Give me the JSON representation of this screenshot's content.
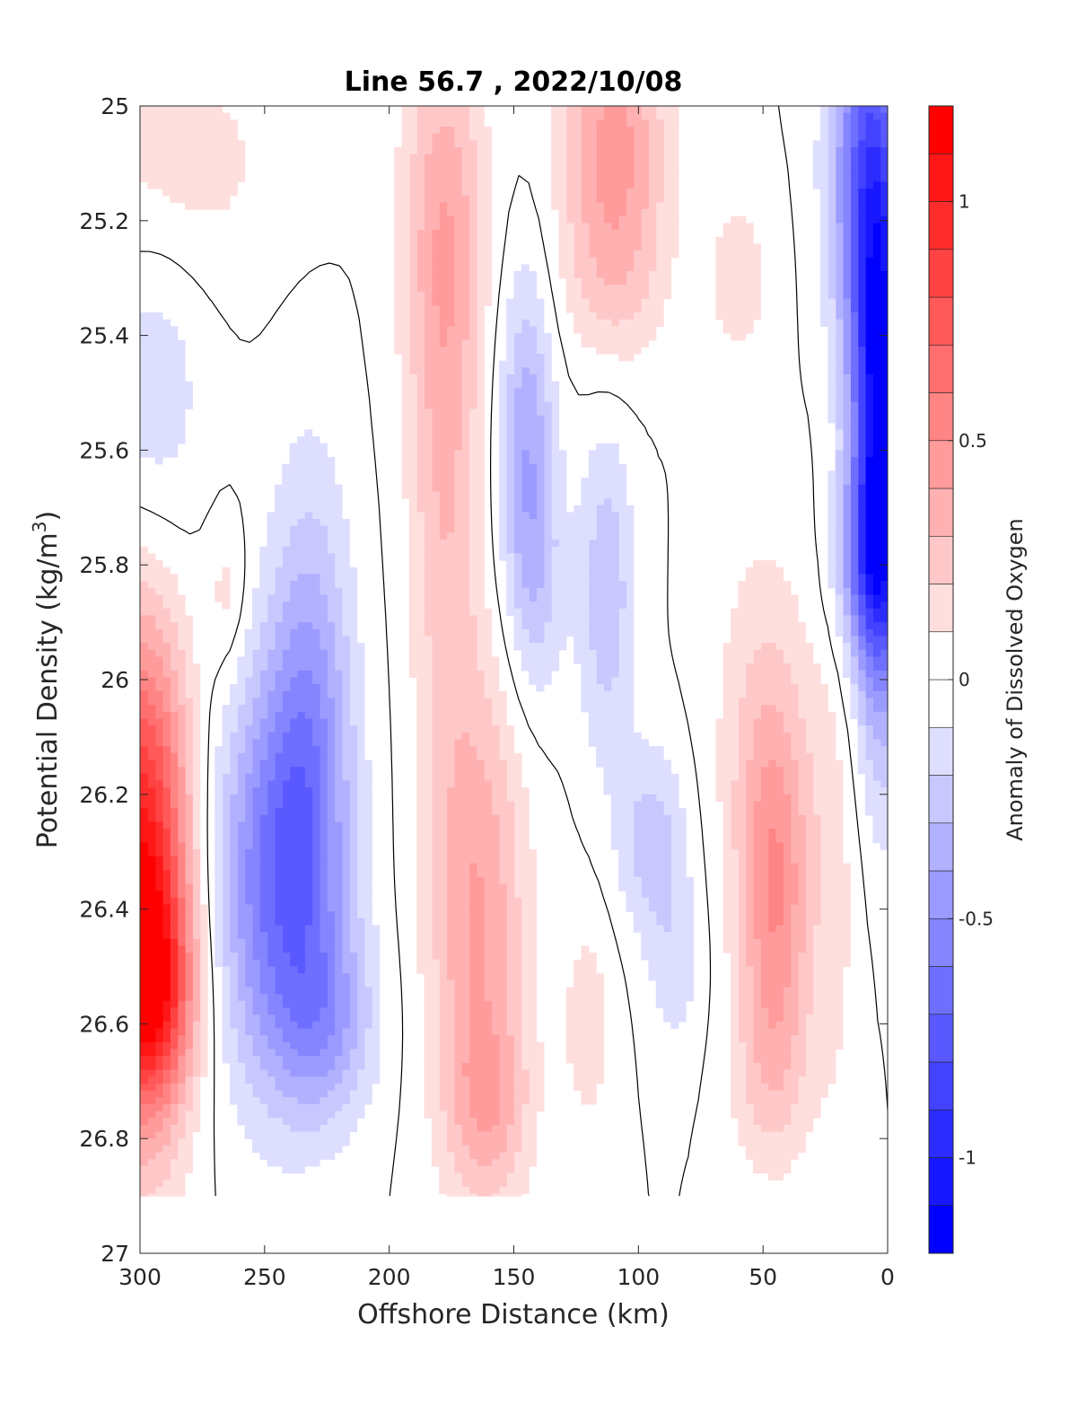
{
  "chart_data": {
    "type": "heatmap",
    "title": "Line 56.7 , 2022/10/08",
    "xlabel": "Offshore Distance (km)",
    "ylabel_main": "Potential Density (kg/m",
    "ylabel_sup": "3",
    "ylabel_close": ")",
    "xlim": [
      300,
      0
    ],
    "ylim": [
      25,
      27
    ],
    "x_reversed": true,
    "y_reversed": true,
    "x_ticks": [
      300,
      250,
      200,
      150,
      100,
      50,
      0
    ],
    "y_ticks": [
      25,
      25.2,
      25.4,
      25.6,
      25.8,
      26,
      26.2,
      26.4,
      26.6,
      26.8,
      27
    ],
    "x_tick_labels": [
      "300",
      "250",
      "200",
      "150",
      "100",
      "50",
      "0"
    ],
    "y_tick_labels": [
      "25",
      "25.2",
      "25.4",
      "25.6",
      "25.8",
      "26",
      "26.2",
      "26.4",
      "26.6",
      "26.8",
      "27"
    ],
    "colorbar": {
      "label": "Anomaly of Dissolved Oxygen",
      "range": [
        -1.2,
        1.2
      ],
      "step": 0.1,
      "ticks": [
        1,
        0.5,
        0,
        -0.5,
        -1
      ],
      "tick_labels": [
        "1",
        "0.5",
        "0",
        "-0.5",
        "-1"
      ],
      "colormap": "blue-white-red",
      "low_color": "#0000ff",
      "high_color": "#ff0000"
    },
    "zero_contour_color": "#000000",
    "data_bottom_density": 26.9,
    "x_grid": [
      0,
      10,
      20,
      30,
      40,
      50,
      60,
      70,
      80,
      90,
      100,
      110,
      120,
      130,
      140,
      150,
      160,
      170,
      180,
      190,
      200,
      210,
      220,
      230,
      240,
      250,
      260,
      270,
      280,
      290,
      300
    ],
    "y_grid": [
      25.0,
      25.1,
      25.2,
      25.3,
      25.4,
      25.5,
      25.6,
      25.7,
      25.8,
      25.9,
      26.0,
      26.1,
      26.2,
      26.3,
      26.4,
      26.5,
      26.6,
      26.7,
      26.8,
      26.9
    ],
    "blobs": [
      {
        "x": 3,
        "y": 25.55,
        "sx": 8,
        "sy": 0.35,
        "a": -1.1
      },
      {
        "x": 10,
        "y": 25.1,
        "sx": 10,
        "sy": 0.25,
        "a": -0.55
      },
      {
        "x": 8,
        "y": 25.8,
        "sx": 10,
        "sy": 0.12,
        "a": -0.4
      },
      {
        "x": 300,
        "y": 26.35,
        "sx": 14,
        "sy": 0.3,
        "a": 1.1
      },
      {
        "x": 296,
        "y": 26.55,
        "sx": 12,
        "sy": 0.12,
        "a": 0.55
      },
      {
        "x": 285,
        "y": 25.1,
        "sx": 30,
        "sy": 0.15,
        "a": 0.15
      },
      {
        "x": 295,
        "y": 25.5,
        "sx": 15,
        "sy": 0.2,
        "a": -0.18
      },
      {
        "x": 245,
        "y": 26.35,
        "sx": 18,
        "sy": 0.25,
        "a": -0.6
      },
      {
        "x": 232,
        "y": 26.05,
        "sx": 12,
        "sy": 0.3,
        "a": -0.35
      },
      {
        "x": 225,
        "y": 26.6,
        "sx": 14,
        "sy": 0.12,
        "a": -0.3
      },
      {
        "x": 178,
        "y": 25.2,
        "sx": 12,
        "sy": 0.25,
        "a": 0.35
      },
      {
        "x": 178,
        "y": 25.7,
        "sx": 10,
        "sy": 0.3,
        "a": 0.25
      },
      {
        "x": 165,
        "y": 26.4,
        "sx": 14,
        "sy": 0.3,
        "a": 0.4
      },
      {
        "x": 160,
        "y": 26.75,
        "sx": 12,
        "sy": 0.12,
        "a": 0.25
      },
      {
        "x": 145,
        "y": 25.6,
        "sx": 8,
        "sy": 0.22,
        "a": -0.38
      },
      {
        "x": 140,
        "y": 25.85,
        "sx": 8,
        "sy": 0.15,
        "a": -0.15
      },
      {
        "x": 113,
        "y": 25.85,
        "sx": 8,
        "sy": 0.2,
        "a": -0.28
      },
      {
        "x": 95,
        "y": 26.28,
        "sx": 10,
        "sy": 0.12,
        "a": -0.25
      },
      {
        "x": 85,
        "y": 26.5,
        "sx": 8,
        "sy": 0.12,
        "a": -0.15
      },
      {
        "x": 110,
        "y": 25.05,
        "sx": 15,
        "sy": 0.15,
        "a": 0.42
      },
      {
        "x": 110,
        "y": 25.3,
        "sx": 15,
        "sy": 0.12,
        "a": 0.22
      },
      {
        "x": 45,
        "y": 26.4,
        "sx": 10,
        "sy": 0.22,
        "a": 0.42
      },
      {
        "x": 50,
        "y": 26.1,
        "sx": 14,
        "sy": 0.25,
        "a": 0.2
      },
      {
        "x": 48,
        "y": 26.7,
        "sx": 12,
        "sy": 0.12,
        "a": 0.15
      },
      {
        "x": 60,
        "y": 25.3,
        "sx": 10,
        "sy": 0.12,
        "a": 0.15
      },
      {
        "x": 20,
        "y": 26.3,
        "sx": 8,
        "sy": 0.4,
        "a": 0.12
      },
      {
        "x": 120,
        "y": 26.6,
        "sx": 8,
        "sy": 0.15,
        "a": 0.15
      },
      {
        "x": 265,
        "y": 25.85,
        "sx": 6,
        "sy": 0.1,
        "a": 0.15
      }
    ]
  }
}
